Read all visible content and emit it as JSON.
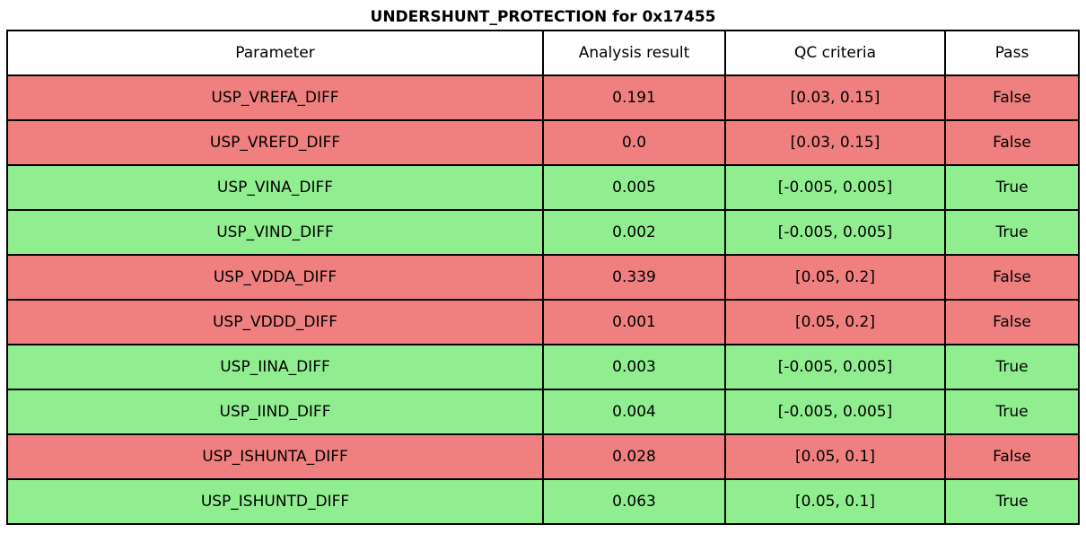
{
  "title": "UNDERSHUNT_PROTECTION for 0x17455",
  "colors": {
    "pass_row_bg": "#90EE90",
    "fail_row_bg": "#F08080",
    "header_bg": "#FFFFFF",
    "border": "#000000",
    "text": "#000000"
  },
  "table": {
    "columns": [
      "Parameter",
      "Analysis result",
      "QC criteria",
      "Pass"
    ],
    "rows": [
      {
        "parameter": "USP_VREFA_DIFF",
        "result": "0.191",
        "criteria": "[0.03, 0.15]",
        "pass": "False"
      },
      {
        "parameter": "USP_VREFD_DIFF",
        "result": "0.0",
        "criteria": "[0.03, 0.15]",
        "pass": "False"
      },
      {
        "parameter": "USP_VINA_DIFF",
        "result": "0.005",
        "criteria": "[-0.005, 0.005]",
        "pass": "True"
      },
      {
        "parameter": "USP_VIND_DIFF",
        "result": "0.002",
        "criteria": "[-0.005, 0.005]",
        "pass": "True"
      },
      {
        "parameter": "USP_VDDA_DIFF",
        "result": "0.339",
        "criteria": "[0.05, 0.2]",
        "pass": "False"
      },
      {
        "parameter": "USP_VDDD_DIFF",
        "result": "0.001",
        "criteria": "[0.05, 0.2]",
        "pass": "False"
      },
      {
        "parameter": "USP_IINA_DIFF",
        "result": "0.003",
        "criteria": "[-0.005, 0.005]",
        "pass": "True"
      },
      {
        "parameter": "USP_IIND_DIFF",
        "result": "0.004",
        "criteria": "[-0.005, 0.005]",
        "pass": "True"
      },
      {
        "parameter": "USP_ISHUNTA_DIFF",
        "result": "0.028",
        "criteria": "[0.05, 0.1]",
        "pass": "False"
      },
      {
        "parameter": "USP_ISHUNTD_DIFF",
        "result": "0.063",
        "criteria": "[0.05, 0.1]",
        "pass": "True"
      }
    ]
  }
}
